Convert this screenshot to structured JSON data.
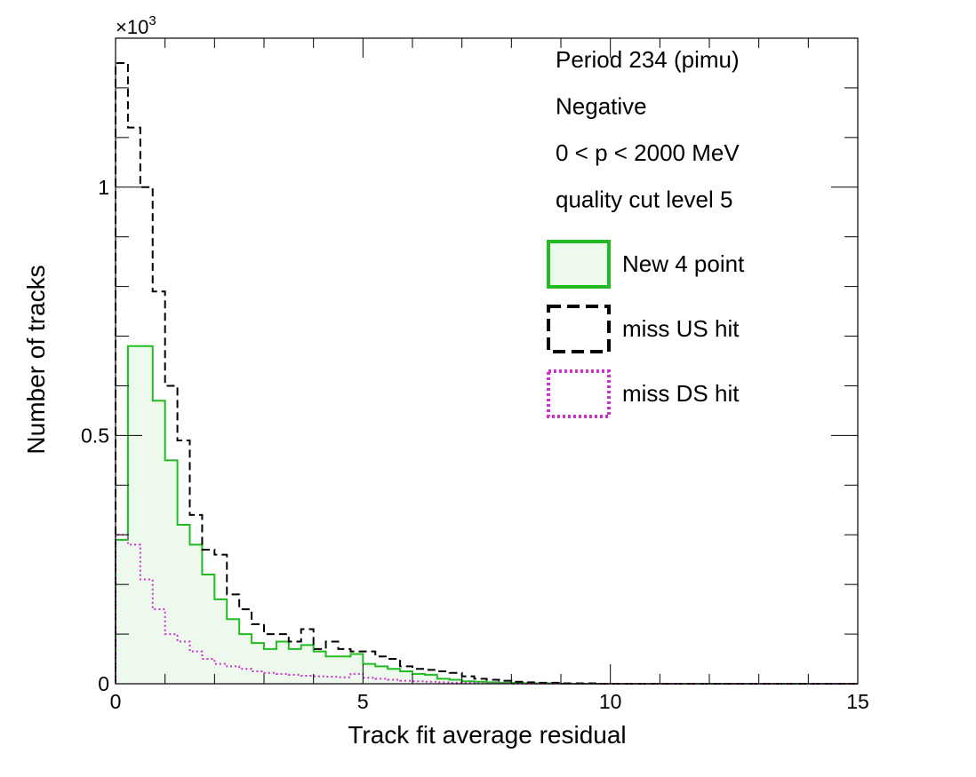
{
  "chart_data": {
    "type": "histogram",
    "xlabel": "Track fit average residual",
    "ylabel": "Number of tracks",
    "y_multiplier_label": "×10",
    "y_multiplier_exponent": "3",
    "xlim": [
      0,
      15
    ],
    "ylim": [
      0,
      1.3
    ],
    "x_ticks": [
      "0",
      "5",
      "10",
      "15"
    ],
    "y_ticks": [
      "0",
      "0.5",
      "1"
    ],
    "bin_width": 0.25,
    "annotations": [
      "Period 234 (pimu)",
      "Negative",
      "0 < p < 2000 MeV",
      "quality cut level 5"
    ],
    "legend_position": "top-right",
    "series": [
      {
        "name": "New 4 point",
        "color": "#22bb22",
        "fill": "#eef9ee",
        "line_style": "solid",
        "values": [
          0.29,
          0.68,
          0.68,
          0.57,
          0.45,
          0.32,
          0.28,
          0.22,
          0.17,
          0.13,
          0.1,
          0.082,
          0.07,
          0.085,
          0.07,
          0.078,
          0.065,
          0.055,
          0.055,
          0.06,
          0.04,
          0.035,
          0.03,
          0.025,
          0.02,
          0.018,
          0.01,
          0.008,
          0.005,
          0.004,
          0.003,
          0.002,
          0.002,
          0.001,
          0.001,
          0.001,
          0,
          0,
          0,
          0,
          0,
          0,
          0,
          0,
          0,
          0,
          0,
          0,
          0,
          0,
          0,
          0,
          0,
          0,
          0,
          0,
          0,
          0,
          0,
          0
        ]
      },
      {
        "name": "miss US hit",
        "color": "#000000",
        "line_style": "dashed",
        "values": [
          1.25,
          1.12,
          1.0,
          0.79,
          0.6,
          0.49,
          0.34,
          0.27,
          0.26,
          0.18,
          0.15,
          0.12,
          0.1,
          0.1,
          0.085,
          0.11,
          0.07,
          0.085,
          0.07,
          0.065,
          0.065,
          0.055,
          0.05,
          0.035,
          0.03,
          0.028,
          0.025,
          0.022,
          0.015,
          0.01,
          0.008,
          0.006,
          0.004,
          0.003,
          0.002,
          0.002,
          0.001,
          0.001,
          0.001,
          0,
          0,
          0,
          0,
          0,
          0,
          0,
          0,
          0,
          0,
          0,
          0,
          0,
          0,
          0,
          0,
          0,
          0,
          0,
          0,
          0
        ]
      },
      {
        "name": "miss DS hit",
        "color": "#cc33cc",
        "line_style": "dotted",
        "values": [
          0.3,
          0.28,
          0.21,
          0.15,
          0.1,
          0.085,
          0.065,
          0.05,
          0.04,
          0.035,
          0.03,
          0.025,
          0.022,
          0.02,
          0.018,
          0.016,
          0.015,
          0.014,
          0.013,
          0.02,
          0.012,
          0.01,
          0.008,
          0.006,
          0.005,
          0.004,
          0.003,
          0.002,
          0.002,
          0.001,
          0.001,
          0.001,
          0,
          0,
          0,
          0,
          0,
          0,
          0,
          0,
          0,
          0,
          0,
          0,
          0,
          0,
          0,
          0,
          0,
          0,
          0,
          0,
          0,
          0,
          0,
          0,
          0,
          0,
          0,
          0
        ]
      }
    ]
  }
}
